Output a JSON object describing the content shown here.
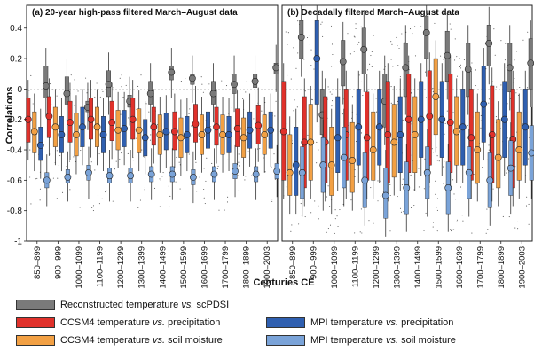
{
  "figure": {
    "ylabel": "Correlations",
    "xlabel": "Centuries CE",
    "yticks": [
      -1,
      -0.8,
      -0.6,
      -0.4,
      -0.2,
      0,
      0.2,
      0.4
    ],
    "categories": [
      "850–899",
      "900–999",
      "1000–1099",
      "1100–1199",
      "1200–1299",
      "1300–1399",
      "1400–1499",
      "1500–1599",
      "1600–1699",
      "1700–1799",
      "1800–1899",
      "1900–2003"
    ]
  },
  "colors": {
    "reconstructed": "#7a7a7a",
    "ccsm4_precip": "#e0312b",
    "ccsm4_soil": "#f2a044",
    "mpi_precip": "#2f5fb0",
    "mpi_soil": "#7aa3d8"
  },
  "legend": [
    {
      "key": "reconstructed",
      "pre": "Reconstructed temperature ",
      "vs": "vs.",
      "post": " scPDSI"
    },
    {
      "key": "ccsm4_precip",
      "pre": "CCSM4 temperature ",
      "vs": "vs.",
      "post": " precipitation"
    },
    {
      "key": "ccsm4_soil",
      "pre": "CCSM4 temperature ",
      "vs": "vs.",
      "post": " soil moisture"
    },
    {
      "key": "mpi_precip",
      "pre": "MPI temperature ",
      "vs": "vs.",
      "post": " precipitation"
    },
    {
      "key": "mpi_soil",
      "pre": "MPI temperature ",
      "vs": "vs.",
      "post": " soil moisture"
    }
  ],
  "chart_data": [
    {
      "type": "box",
      "title": "(a)  20-year high-pass filtered March–August data",
      "ylim": [
        -1,
        0.55
      ],
      "series": [
        {
          "name": "Reconstructed temperature vs. scPDSI",
          "key": "reconstructed",
          "median": [
            0.02,
            -0.03,
            -0.12,
            0.03,
            -0.08,
            -0.03,
            0.11,
            0.07,
            -0.03,
            0.03,
            0.05,
            0.14
          ],
          "q1": [
            -0.06,
            -0.1,
            -0.15,
            -0.05,
            -0.12,
            -0.1,
            0.06,
            0.03,
            -0.1,
            -0.03,
            0.01,
            0.1
          ],
          "q3": [
            0.15,
            0.08,
            -0.08,
            0.12,
            -0.04,
            0.05,
            0.15,
            0.1,
            0.05,
            0.1,
            0.1,
            0.17
          ]
        },
        {
          "name": "CCSM4 temperature vs. precipitation",
          "key": "ccsm4_precip",
          "median": [
            -0.2,
            -0.18,
            -0.22,
            -0.2,
            -0.22,
            -0.2,
            -0.25,
            -0.28,
            -0.23,
            -0.25,
            -0.26,
            -0.24
          ],
          "q1": [
            -0.35,
            -0.32,
            -0.35,
            -0.33,
            -0.34,
            -0.33,
            -0.37,
            -0.4,
            -0.35,
            -0.37,
            -0.38,
            -0.36
          ],
          "q3": [
            -0.06,
            -0.05,
            -0.08,
            -0.06,
            -0.08,
            -0.06,
            -0.12,
            -0.15,
            -0.1,
            -0.12,
            -0.13,
            -0.11
          ]
        },
        {
          "name": "CCSM4 temperature vs. soil moisture",
          "key": "ccsm4_soil",
          "median": [
            -0.28,
            -0.25,
            -0.3,
            -0.25,
            -0.27,
            -0.27,
            -0.3,
            -0.32,
            -0.3,
            -0.3,
            -0.32,
            -0.3
          ],
          "q1": [
            -0.42,
            -0.38,
            -0.44,
            -0.38,
            -0.4,
            -0.42,
            -0.43,
            -0.45,
            -0.43,
            -0.43,
            -0.45,
            -0.43
          ],
          "q3": [
            -0.15,
            -0.12,
            -0.16,
            -0.12,
            -0.14,
            -0.13,
            -0.17,
            -0.19,
            -0.17,
            -0.17,
            -0.19,
            -0.17
          ]
        },
        {
          "name": "MPI temperature vs. precipitation",
          "key": "mpi_precip",
          "median": [
            -0.37,
            -0.3,
            -0.25,
            -0.3,
            -0.26,
            -0.32,
            -0.28,
            -0.3,
            -0.27,
            -0.3,
            -0.27,
            -0.27
          ],
          "q1": [
            -0.47,
            -0.42,
            -0.38,
            -0.42,
            -0.38,
            -0.44,
            -0.4,
            -0.42,
            -0.39,
            -0.42,
            -0.39,
            -0.39
          ],
          "q3": [
            -0.25,
            -0.18,
            -0.12,
            -0.18,
            -0.14,
            -0.2,
            -0.16,
            -0.18,
            -0.15,
            -0.18,
            -0.15,
            -0.15
          ]
        },
        {
          "name": "MPI temperature vs. soil moisture",
          "key": "mpi_soil",
          "median": [
            -0.6,
            -0.58,
            -0.55,
            -0.57,
            -0.57,
            -0.56,
            -0.56,
            -0.58,
            -0.56,
            -0.54,
            -0.56,
            -0.54
          ],
          "q1": [
            -0.65,
            -0.62,
            -0.6,
            -0.62,
            -0.62,
            -0.61,
            -0.61,
            -0.63,
            -0.61,
            -0.59,
            -0.61,
            -0.59
          ],
          "q3": [
            -0.55,
            -0.53,
            -0.5,
            -0.52,
            -0.52,
            -0.51,
            -0.51,
            -0.53,
            -0.51,
            -0.49,
            -0.51,
            -0.49
          ]
        }
      ]
    },
    {
      "type": "box",
      "title": "(b)  Decadally filtered March–August data",
      "ylim": [
        -1,
        0.55
      ],
      "series": [
        {
          "name": "Reconstructed temperature vs. scPDSI",
          "key": "reconstructed",
          "median": [
            0.34,
            -0.17,
            0.18,
            0.26,
            -0.08,
            0.14,
            0.37,
            0.22,
            0.13,
            0.3,
            0.14,
            0.17
          ],
          "q1": [
            0.2,
            -0.3,
            0.02,
            0.1,
            -0.25,
            -0.05,
            0.2,
            0.05,
            -0.05,
            0.15,
            -0.02,
            0.0
          ],
          "q3": [
            0.45,
            0.0,
            0.32,
            0.4,
            0.1,
            0.3,
            0.48,
            0.38,
            0.3,
            0.42,
            0.3,
            0.33
          ]
        },
        {
          "name": "CCSM4 temperature vs. precipitation",
          "key": "ccsm4_precip",
          "median": [
            -0.28,
            -0.35,
            -0.35,
            -0.3,
            -0.32,
            -0.3,
            -0.2,
            -0.18,
            -0.22,
            -0.32,
            -0.3,
            -0.33
          ],
          "q1": [
            -0.6,
            -0.65,
            -0.62,
            -0.6,
            -0.6,
            -0.62,
            -0.55,
            -0.5,
            -0.55,
            -0.6,
            -0.62,
            -0.65
          ],
          "q3": [
            0.05,
            -0.05,
            -0.05,
            0.0,
            -0.02,
            0.05,
            0.1,
            0.12,
            0.1,
            0.0,
            0.02,
            0.0
          ]
        },
        {
          "name": "CCSM4 temperature vs. soil moisture",
          "key": "ccsm4_soil",
          "median": [
            -0.55,
            -0.35,
            -0.5,
            -0.47,
            -0.4,
            -0.35,
            -0.3,
            -0.05,
            -0.28,
            -0.4,
            -0.45,
            -0.4
          ],
          "q1": [
            -0.7,
            -0.6,
            -0.7,
            -0.68,
            -0.6,
            -0.58,
            -0.55,
            -0.3,
            -0.5,
            -0.62,
            -0.65,
            -0.6
          ],
          "q3": [
            -0.3,
            -0.1,
            -0.25,
            -0.22,
            -0.15,
            -0.1,
            -0.05,
            0.2,
            -0.05,
            -0.15,
            -0.2,
            -0.15
          ]
        },
        {
          "name": "MPI temperature vs. precipitation",
          "key": "mpi_precip",
          "median": [
            -0.5,
            0.2,
            -0.32,
            -0.25,
            -0.25,
            -0.3,
            -0.2,
            -0.2,
            -0.25,
            -0.1,
            -0.2,
            -0.25
          ],
          "q1": [
            -0.7,
            -0.1,
            -0.55,
            -0.5,
            -0.5,
            -0.55,
            -0.45,
            -0.45,
            -0.5,
            -0.35,
            -0.45,
            -0.5
          ],
          "q3": [
            -0.25,
            0.45,
            -0.05,
            0.0,
            0.0,
            -0.05,
            0.05,
            0.05,
            0.0,
            0.15,
            0.05,
            0.0
          ]
        },
        {
          "name": "MPI temperature vs. soil moisture",
          "key": "mpi_soil",
          "median": [
            -0.55,
            -0.5,
            -0.45,
            -0.6,
            -0.7,
            -0.65,
            -0.55,
            -0.65,
            -0.55,
            -0.6,
            -0.52,
            -0.42
          ],
          "q1": [
            -0.72,
            -0.68,
            -0.65,
            -0.78,
            -0.85,
            -0.82,
            -0.72,
            -0.82,
            -0.72,
            -0.78,
            -0.7,
            -0.6
          ],
          "q3": [
            -0.38,
            -0.32,
            -0.25,
            -0.42,
            -0.52,
            -0.48,
            -0.38,
            -0.48,
            -0.38,
            -0.42,
            -0.34,
            -0.24
          ]
        }
      ]
    }
  ]
}
